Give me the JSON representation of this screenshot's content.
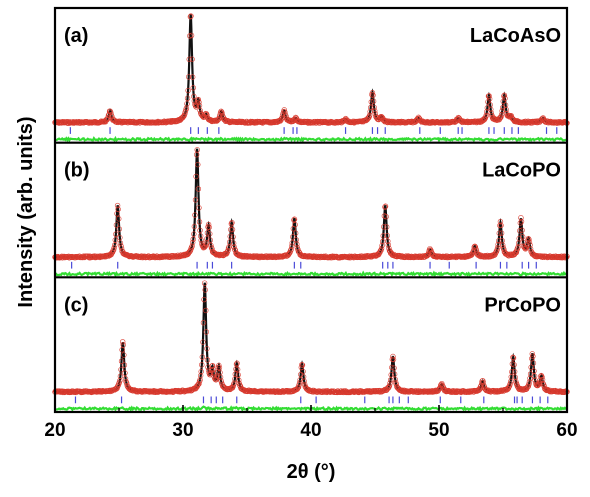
{
  "chart_data": {
    "type": "line",
    "xlabel": "2θ (°)",
    "ylabel": "Intensity (arb. units)",
    "xlim": [
      20,
      60
    ],
    "xticks": [
      20,
      30,
      40,
      50,
      60
    ],
    "grid": false,
    "colors": {
      "observed": "#d83a2e",
      "calculated": "#111111",
      "difference": "#33dd33",
      "bragg_ticks": "#4a4ad8"
    },
    "panels": [
      {
        "label": "(a)",
        "compound": "LaCoAsO",
        "peaks": [
          {
            "x": 24.3,
            "h": 0.11
          },
          {
            "x": 30.6,
            "h": 1.0
          },
          {
            "x": 31.2,
            "h": 0.17
          },
          {
            "x": 31.8,
            "h": 0.06
          },
          {
            "x": 33.0,
            "h": 0.1
          },
          {
            "x": 37.9,
            "h": 0.11
          },
          {
            "x": 38.8,
            "h": 0.04
          },
          {
            "x": 42.7,
            "h": 0.03
          },
          {
            "x": 44.8,
            "h": 0.28
          },
          {
            "x": 45.5,
            "h": 0.05
          },
          {
            "x": 48.4,
            "h": 0.04
          },
          {
            "x": 51.5,
            "h": 0.04
          },
          {
            "x": 53.9,
            "h": 0.25
          },
          {
            "x": 55.1,
            "h": 0.25
          },
          {
            "x": 55.6,
            "h": 0.05
          },
          {
            "x": 58.1,
            "h": 0.04
          }
        ],
        "bragg": [
          21.2,
          24.3,
          30.6,
          31.2,
          31.9,
          32.8,
          37.9,
          38.6,
          38.9,
          42.7,
          44.8,
          45.2,
          45.8,
          48.5,
          50.1,
          51.5,
          51.8,
          53.9,
          54.3,
          55.1,
          55.7,
          56.2,
          58.4,
          59.2
        ]
      },
      {
        "label": "(b)",
        "compound": "LaCoPO",
        "peaks": [
          {
            "x": 24.9,
            "h": 0.48
          },
          {
            "x": 31.1,
            "h": 1.0
          },
          {
            "x": 32.0,
            "h": 0.28
          },
          {
            "x": 33.8,
            "h": 0.32
          },
          {
            "x": 38.7,
            "h": 0.36
          },
          {
            "x": 45.8,
            "h": 0.48
          },
          {
            "x": 49.3,
            "h": 0.07
          },
          {
            "x": 52.8,
            "h": 0.1
          },
          {
            "x": 54.8,
            "h": 0.32
          },
          {
            "x": 56.4,
            "h": 0.35
          },
          {
            "x": 57.0,
            "h": 0.16
          }
        ],
        "bragg": [
          21.3,
          24.9,
          31.1,
          31.9,
          32.3,
          33.8,
          38.7,
          39.2,
          45.6,
          46.0,
          46.4,
          49.3,
          50.8,
          52.9,
          54.8,
          55.3,
          56.5,
          57.0,
          57.6
        ]
      },
      {
        "label": "(c)",
        "compound": "PrCoPO",
        "peaks": [
          {
            "x": 25.3,
            "h": 0.46
          },
          {
            "x": 31.7,
            "h": 1.0
          },
          {
            "x": 32.3,
            "h": 0.18
          },
          {
            "x": 32.8,
            "h": 0.22
          },
          {
            "x": 34.2,
            "h": 0.26
          },
          {
            "x": 39.3,
            "h": 0.26
          },
          {
            "x": 46.4,
            "h": 0.33
          },
          {
            "x": 50.2,
            "h": 0.07
          },
          {
            "x": 53.4,
            "h": 0.1
          },
          {
            "x": 55.8,
            "h": 0.32
          },
          {
            "x": 57.3,
            "h": 0.35
          },
          {
            "x": 58.0,
            "h": 0.14
          }
        ],
        "bragg": [
          21.6,
          25.2,
          31.6,
          32.2,
          32.6,
          33.1,
          34.2,
          39.2,
          40.4,
          44.2,
          46.1,
          46.4,
          46.9,
          47.6,
          50.1,
          51.7,
          53.5,
          55.9,
          56.1,
          56.5,
          57.3,
          57.9,
          58.5
        ]
      }
    ]
  }
}
